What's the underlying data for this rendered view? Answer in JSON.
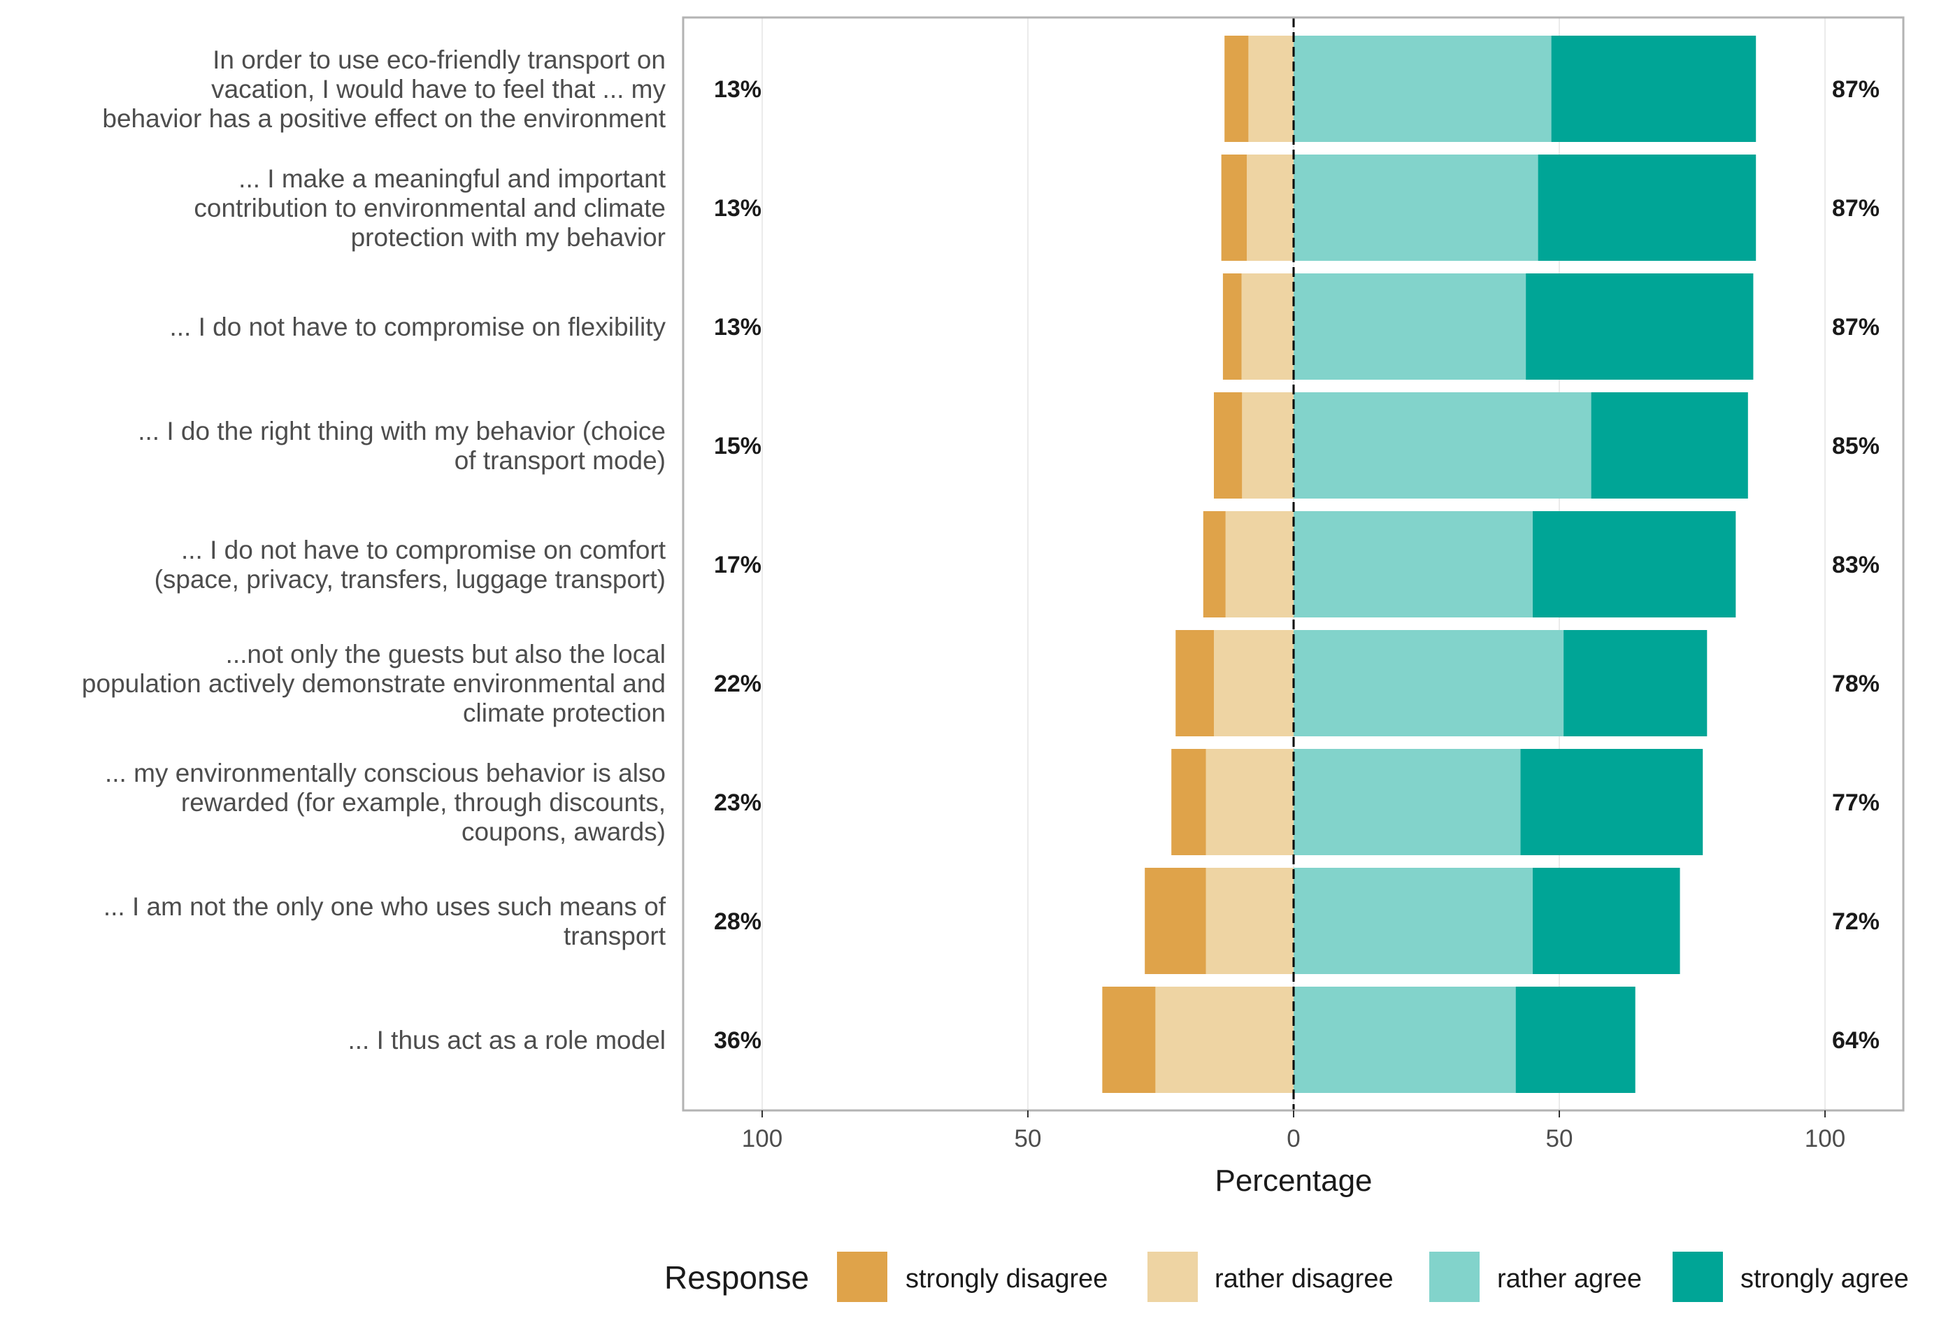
{
  "chart_data": {
    "type": "bar",
    "orientation": "horizontal",
    "stacking": "diverging",
    "xlabel": "Percentage",
    "xlim": [
      -115,
      115
    ],
    "x_ticks": [
      -100,
      -50,
      0,
      50,
      100
    ],
    "x_tick_labels": [
      "100",
      "50",
      "0",
      "50",
      "100"
    ],
    "legend_title": "Response",
    "legend_position": "bottom",
    "categories": [
      "In order to use eco-friendly transport on vacation, I would have to feel that ... my behavior has a positive effect on the environment",
      "... I make a meaningful and important contribution to environmental and climate protection with my behavior",
      "... I do not have to compromise on flexibility",
      "... I do the right thing with my behavior (choice of transport mode)",
      "... I do not have to compromise on comfort (space, privacy, transfers, luggage transport)",
      "...not only the guests but also the local population actively demonstrate environmental and climate protection",
      "... my environmentally conscious behavior is also rewarded (for example, through discounts, coupons, awards)",
      "... I am not the only one who uses such means of transport",
      "... I thus act as a role model"
    ],
    "category_lines": [
      [
        "In order to use eco-friendly transport on",
        "vacation, I would have to feel that ... my",
        "behavior has a positive effect on the environment"
      ],
      [
        "... I make a meaningful and important",
        "contribution to environmental and climate",
        "protection with my behavior"
      ],
      [
        "... I do not have to compromise on flexibility"
      ],
      [
        "... I do the right thing with my behavior (choice",
        "of transport mode)"
      ],
      [
        "... I do not have to compromise on comfort",
        "(space, privacy, transfers, luggage transport)"
      ],
      [
        "...not only the guests but also the local",
        "population actively demonstrate environmental and",
        "climate protection"
      ],
      [
        "... my environmentally conscious behavior is also",
        "rewarded (for example, through discounts,",
        "coupons, awards)"
      ],
      [
        "... I am not the only one who uses such means of",
        "transport"
      ],
      [
        "... I thus act as a role model"
      ]
    ],
    "series": [
      {
        "name": "strongly disagree",
        "color": "#dfa34a",
        "values": [
          4.5,
          4.8,
          3.5,
          5.3,
          4.2,
          7.2,
          6.5,
          11.5,
          10.0
        ]
      },
      {
        "name": "rather disagree",
        "color": "#eed4a3",
        "values": [
          8.5,
          8.8,
          9.8,
          9.7,
          12.8,
          15.0,
          16.5,
          16.5,
          26.0
        ]
      },
      {
        "name": "rather agree",
        "color": "#82d3cb",
        "values": [
          48.5,
          46.0,
          43.7,
          56.0,
          45.0,
          50.8,
          42.7,
          45.0,
          41.8
        ]
      },
      {
        "name": "strongly agree",
        "color": "#00a596",
        "values": [
          38.5,
          41.0,
          42.8,
          29.5,
          38.2,
          27.0,
          34.3,
          27.7,
          22.5
        ]
      }
    ],
    "left_totals": [
      "13%",
      "13%",
      "13%",
      "15%",
      "17%",
      "22%",
      "23%",
      "28%",
      "36%"
    ],
    "right_totals": [
      "87%",
      "87%",
      "87%",
      "85%",
      "83%",
      "78%",
      "77%",
      "72%",
      "64%"
    ]
  }
}
